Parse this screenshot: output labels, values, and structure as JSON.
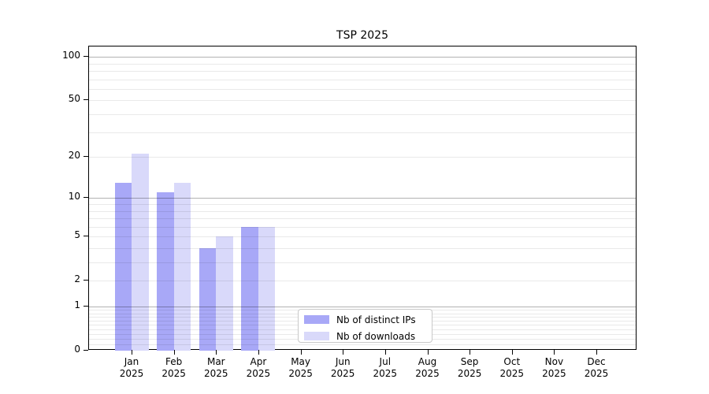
{
  "title": "TSP 2025",
  "chart_data": {
    "type": "bar",
    "title": "TSP 2025",
    "categories": [
      "Jan",
      "Feb",
      "Mar",
      "Apr",
      "May",
      "Jun",
      "Jul",
      "Aug",
      "Sep",
      "Oct",
      "Nov",
      "Dec"
    ],
    "category_year": "2025",
    "series": [
      {
        "name": "Nb of distinct IPs",
        "color": "#a8a8f7",
        "values": [
          13,
          11,
          4,
          6,
          0,
          0,
          0,
          0,
          0,
          0,
          0,
          0
        ]
      },
      {
        "name": "Nb of downloads",
        "color": "#d9d9fa",
        "values": [
          21,
          13,
          5,
          6,
          0,
          0,
          0,
          0,
          0,
          0,
          0,
          0
        ]
      }
    ],
    "y_axis": {
      "scale": "log10(1+v)",
      "ylim": [
        0,
        118
      ],
      "tick_labels": [
        100,
        50,
        20,
        10,
        5,
        2,
        1,
        0
      ],
      "grid_major_values": [
        1,
        10,
        100
      ],
      "grid": "on"
    },
    "x_axis": {
      "label_line2": "2025"
    },
    "legend_position": "lower-center-left"
  },
  "colors": {
    "background": "#ffffff",
    "spine": "#000000",
    "grid_major": "#b2b2b2",
    "grid_minor": "#e9e9e9",
    "legend_border": "#c9c9c9",
    "text": "#000000"
  }
}
